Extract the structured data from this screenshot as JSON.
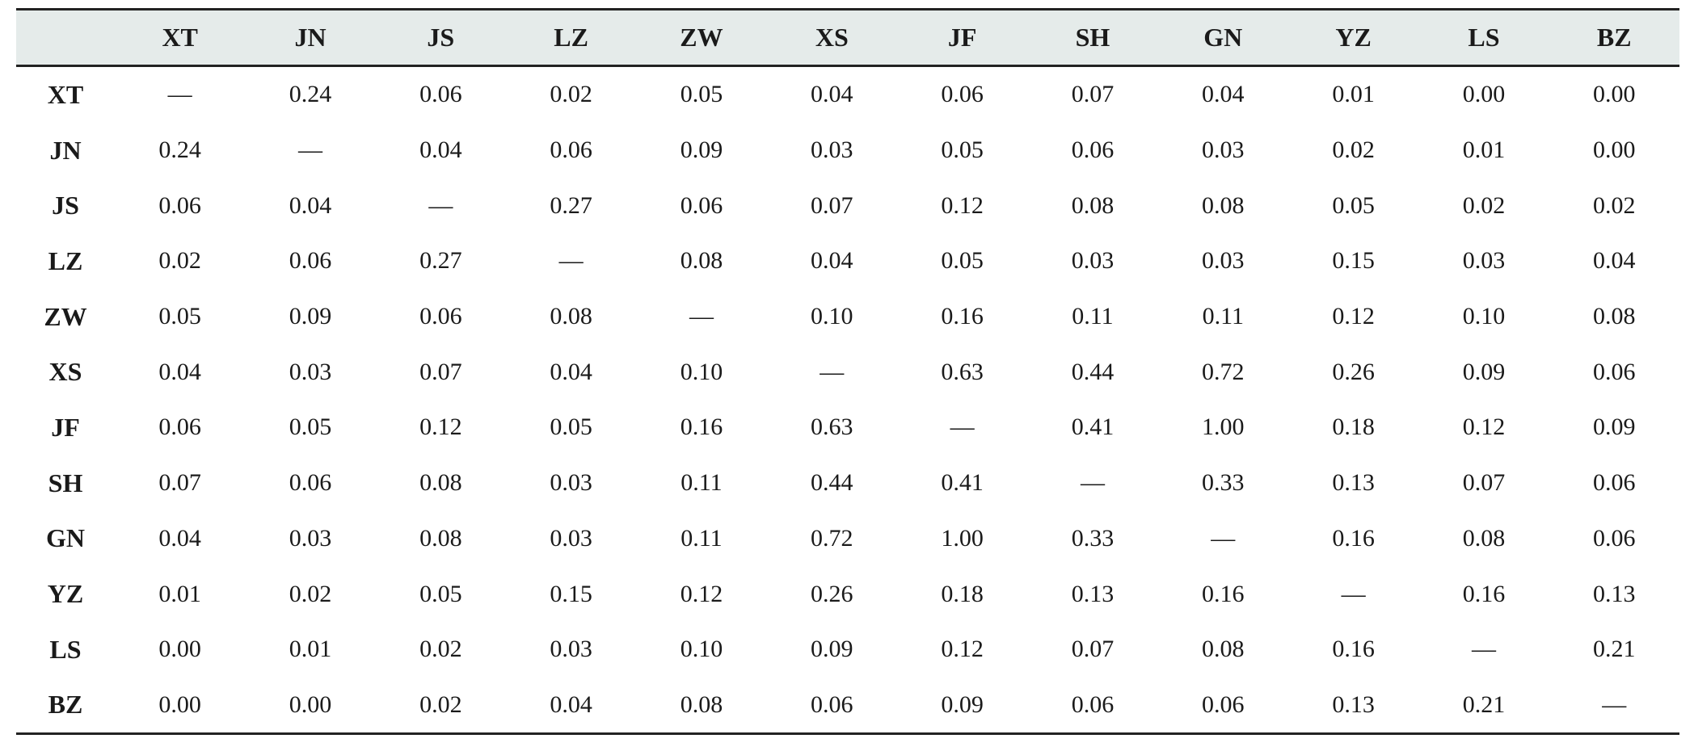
{
  "table": {
    "corner_label": "",
    "columns": [
      "XT",
      "JN",
      "JS",
      "LZ",
      "ZW",
      "XS",
      "JF",
      "SH",
      "GN",
      "YZ",
      "LS",
      "BZ"
    ],
    "rows": [
      {
        "label": "XT",
        "cells": [
          "—",
          "0.24",
          "0.06",
          "0.02",
          "0.05",
          "0.04",
          "0.06",
          "0.07",
          "0.04",
          "0.01",
          "0.00",
          "0.00"
        ]
      },
      {
        "label": "JN",
        "cells": [
          "0.24",
          "—",
          "0.04",
          "0.06",
          "0.09",
          "0.03",
          "0.05",
          "0.06",
          "0.03",
          "0.02",
          "0.01",
          "0.00"
        ]
      },
      {
        "label": "JS",
        "cells": [
          "0.06",
          "0.04",
          "—",
          "0.27",
          "0.06",
          "0.07",
          "0.12",
          "0.08",
          "0.08",
          "0.05",
          "0.02",
          "0.02"
        ]
      },
      {
        "label": "LZ",
        "cells": [
          "0.02",
          "0.06",
          "0.27",
          "—",
          "0.08",
          "0.04",
          "0.05",
          "0.03",
          "0.03",
          "0.15",
          "0.03",
          "0.04"
        ]
      },
      {
        "label": "ZW",
        "cells": [
          "0.05",
          "0.09",
          "0.06",
          "0.08",
          "—",
          "0.10",
          "0.16",
          "0.11",
          "0.11",
          "0.12",
          "0.10",
          "0.08"
        ]
      },
      {
        "label": "XS",
        "cells": [
          "0.04",
          "0.03",
          "0.07",
          "0.04",
          "0.10",
          "—",
          "0.63",
          "0.44",
          "0.72",
          "0.26",
          "0.09",
          "0.06"
        ]
      },
      {
        "label": "JF",
        "cells": [
          "0.06",
          "0.05",
          "0.12",
          "0.05",
          "0.16",
          "0.63",
          "—",
          "0.41",
          "1.00",
          "0.18",
          "0.12",
          "0.09"
        ]
      },
      {
        "label": "SH",
        "cells": [
          "0.07",
          "0.06",
          "0.08",
          "0.03",
          "0.11",
          "0.44",
          "0.41",
          "—",
          "0.33",
          "0.13",
          "0.07",
          "0.06"
        ]
      },
      {
        "label": "GN",
        "cells": [
          "0.04",
          "0.03",
          "0.08",
          "0.03",
          "0.11",
          "0.72",
          "1.00",
          "0.33",
          "—",
          "0.16",
          "0.08",
          "0.06"
        ]
      },
      {
        "label": "YZ",
        "cells": [
          "0.01",
          "0.02",
          "0.05",
          "0.15",
          "0.12",
          "0.26",
          "0.18",
          "0.13",
          "0.16",
          "—",
          "0.16",
          "0.13"
        ]
      },
      {
        "label": "LS",
        "cells": [
          "0.00",
          "0.01",
          "0.02",
          "0.03",
          "0.10",
          "0.09",
          "0.12",
          "0.07",
          "0.08",
          "0.16",
          "—",
          "0.21"
        ]
      },
      {
        "label": "BZ",
        "cells": [
          "0.00",
          "0.00",
          "0.02",
          "0.04",
          "0.08",
          "0.06",
          "0.09",
          "0.06",
          "0.06",
          "0.13",
          "0.21",
          "—"
        ]
      }
    ]
  },
  "colors": {
    "header_background": "#e5ebea",
    "rule": "#222222",
    "text": "#1a1a1a"
  }
}
